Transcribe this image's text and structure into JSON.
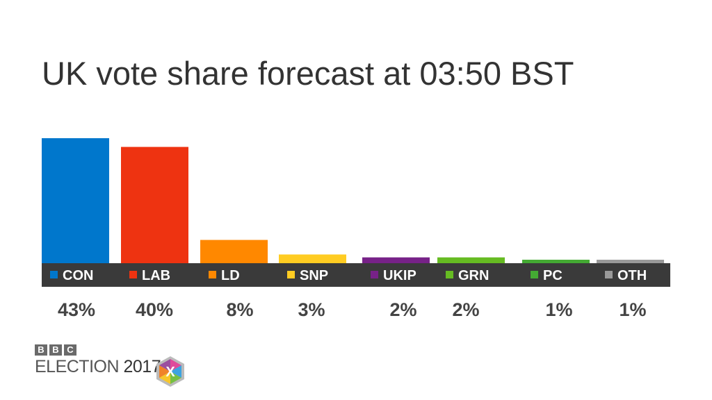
{
  "chart_data": {
    "type": "bar",
    "title": "UK vote share forecast at 03:50 BST",
    "categories": [
      "CON",
      "LAB",
      "LD",
      "SNP",
      "UKIP",
      "GRN",
      "PC",
      "OTH"
    ],
    "values": [
      43,
      40,
      8,
      3,
      2,
      2,
      1,
      1
    ],
    "value_labels": [
      "43%",
      "40%",
      "8%",
      "3%",
      "2%",
      "2%",
      "1%",
      "1%"
    ],
    "colors": [
      "#0077cc",
      "#ee3311",
      "#ff8800",
      "#ffcc22",
      "#772288",
      "#66bb22",
      "#44aa33",
      "#999999"
    ],
    "xlabel": "",
    "ylabel": "",
    "ylim": [
      0,
      43
    ],
    "grid": false,
    "legend": "none"
  },
  "branding": {
    "bbc_letters": [
      "B",
      "B",
      "C"
    ],
    "election_word": "ELECTION",
    "year": "2017",
    "badge_letter": "X"
  }
}
